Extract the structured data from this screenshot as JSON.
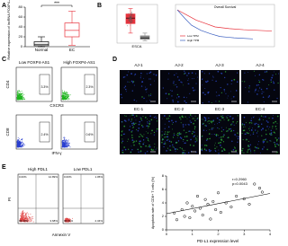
{
  "panel_labels": [
    "A",
    "B",
    "C",
    "D",
    "E"
  ],
  "panel_a": {
    "y_label": "Relative expression of lncRNA FOXP4-AS1",
    "categories": [
      "Normal",
      "EC"
    ],
    "significance": "***",
    "ylim": [
      0,
      80
    ],
    "yticks": [
      0,
      20,
      40,
      60,
      80
    ],
    "boxes": [
      {
        "min": 0,
        "q1": 2,
        "median": 5,
        "q3": 10,
        "max": 20,
        "color": "#000000"
      },
      {
        "min": 3,
        "q1": 20,
        "median": 33,
        "q3": 48,
        "max": 72,
        "color": "#e8323c"
      }
    ]
  },
  "panel_b": {
    "box_label": "ESCA",
    "ylim": [
      0,
      5
    ],
    "boxes": [
      {
        "min": 1.2,
        "q1": 2.6,
        "median": 3.4,
        "q3": 4,
        "max": 4.8,
        "color": "#e8323c"
      },
      {
        "min": 0.1,
        "q1": 0.3,
        "median": 0.5,
        "q3": 0.8,
        "max": 1.2,
        "color": "#888888"
      }
    ],
    "survival": {
      "title": "Overall Survival",
      "xlim": [
        0,
        100
      ],
      "ylim": [
        0,
        1
      ],
      "series": [
        {
          "name": "Low TPM",
          "color": "#e8323c",
          "x": [
            0,
            10,
            20,
            30,
            40,
            55,
            70,
            85,
            100
          ],
          "y": [
            1,
            0.85,
            0.7,
            0.6,
            0.5,
            0.45,
            0.42,
            0.4,
            0.38
          ]
        },
        {
          "name": "High TPM",
          "color": "#3b5fc0",
          "x": [
            0,
            8,
            15,
            25,
            35,
            45,
            60,
            80
          ],
          "y": [
            1,
            0.75,
            0.55,
            0.4,
            0.3,
            0.22,
            0.18,
            0.15
          ]
        }
      ]
    }
  },
  "panel_c": {
    "columns": [
      "Low FOXP4-AS1",
      "High FOXP4-AS1"
    ],
    "rows": [
      {
        "y_label": "CD4",
        "x_label": "CXCR3",
        "gates": [
          "3.3%",
          "2.3%"
        ]
      },
      {
        "y_label": "CD8",
        "x_label": "IFN-γ",
        "gates": [
          "2.4%",
          "0.6%"
        ]
      }
    ]
  },
  "panel_d": {
    "rows": [
      [
        "AJ-1",
        "AJ-2",
        "AJ-3",
        "AJ-4"
      ],
      [
        "EC-1",
        "EC-2",
        "EC-3",
        "EC-4"
      ]
    ]
  },
  "panel_e": {
    "columns": [
      "High PDL1",
      "Low PDL1"
    ],
    "x_label": "Annexin V",
    "y_label": "PI",
    "quadrants": [
      [
        "0.00%",
        "12.89%",
        "83.43%",
        "3.68%"
      ],
      [
        "0.00%",
        "1.05%",
        "96.61%",
        "2.34%"
      ]
    ],
    "scatter": {
      "y_label": "Apoptosis rate of CD8+ T cells (%)",
      "x_label": "PD-L1 expression level",
      "stats": [
        "r=0.2960",
        "p=0.0043"
      ],
      "xlim": [
        0,
        4
      ],
      "ylim": [
        0,
        8
      ],
      "xticks": [
        0,
        1,
        2,
        3,
        4
      ],
      "yticks": [
        0,
        2,
        4,
        6,
        8
      ],
      "x": [
        0.3,
        0.4,
        0.6,
        0.7,
        0.8,
        0.9,
        1.0,
        1.1,
        1.2,
        1.3,
        1.4,
        1.5,
        1.6,
        1.7,
        1.8,
        1.9,
        2.0,
        2.1,
        2.3,
        2.5,
        2.7,
        3.0,
        3.2,
        3.4,
        3.6,
        3.7
      ],
      "y": [
        2.5,
        1.5,
        3.0,
        2.0,
        4.0,
        1.8,
        3.5,
        2.8,
        5.0,
        3.2,
        2.2,
        4.5,
        3.8,
        1.6,
        4.2,
        3.0,
        5.5,
        2.6,
        4.0,
        3.4,
        5.0,
        4.6,
        3.8,
        6.8,
        6.2,
        5.6
      ],
      "fit": {
        "slope": 0.75,
        "intercept": 2.4
      }
    }
  }
}
